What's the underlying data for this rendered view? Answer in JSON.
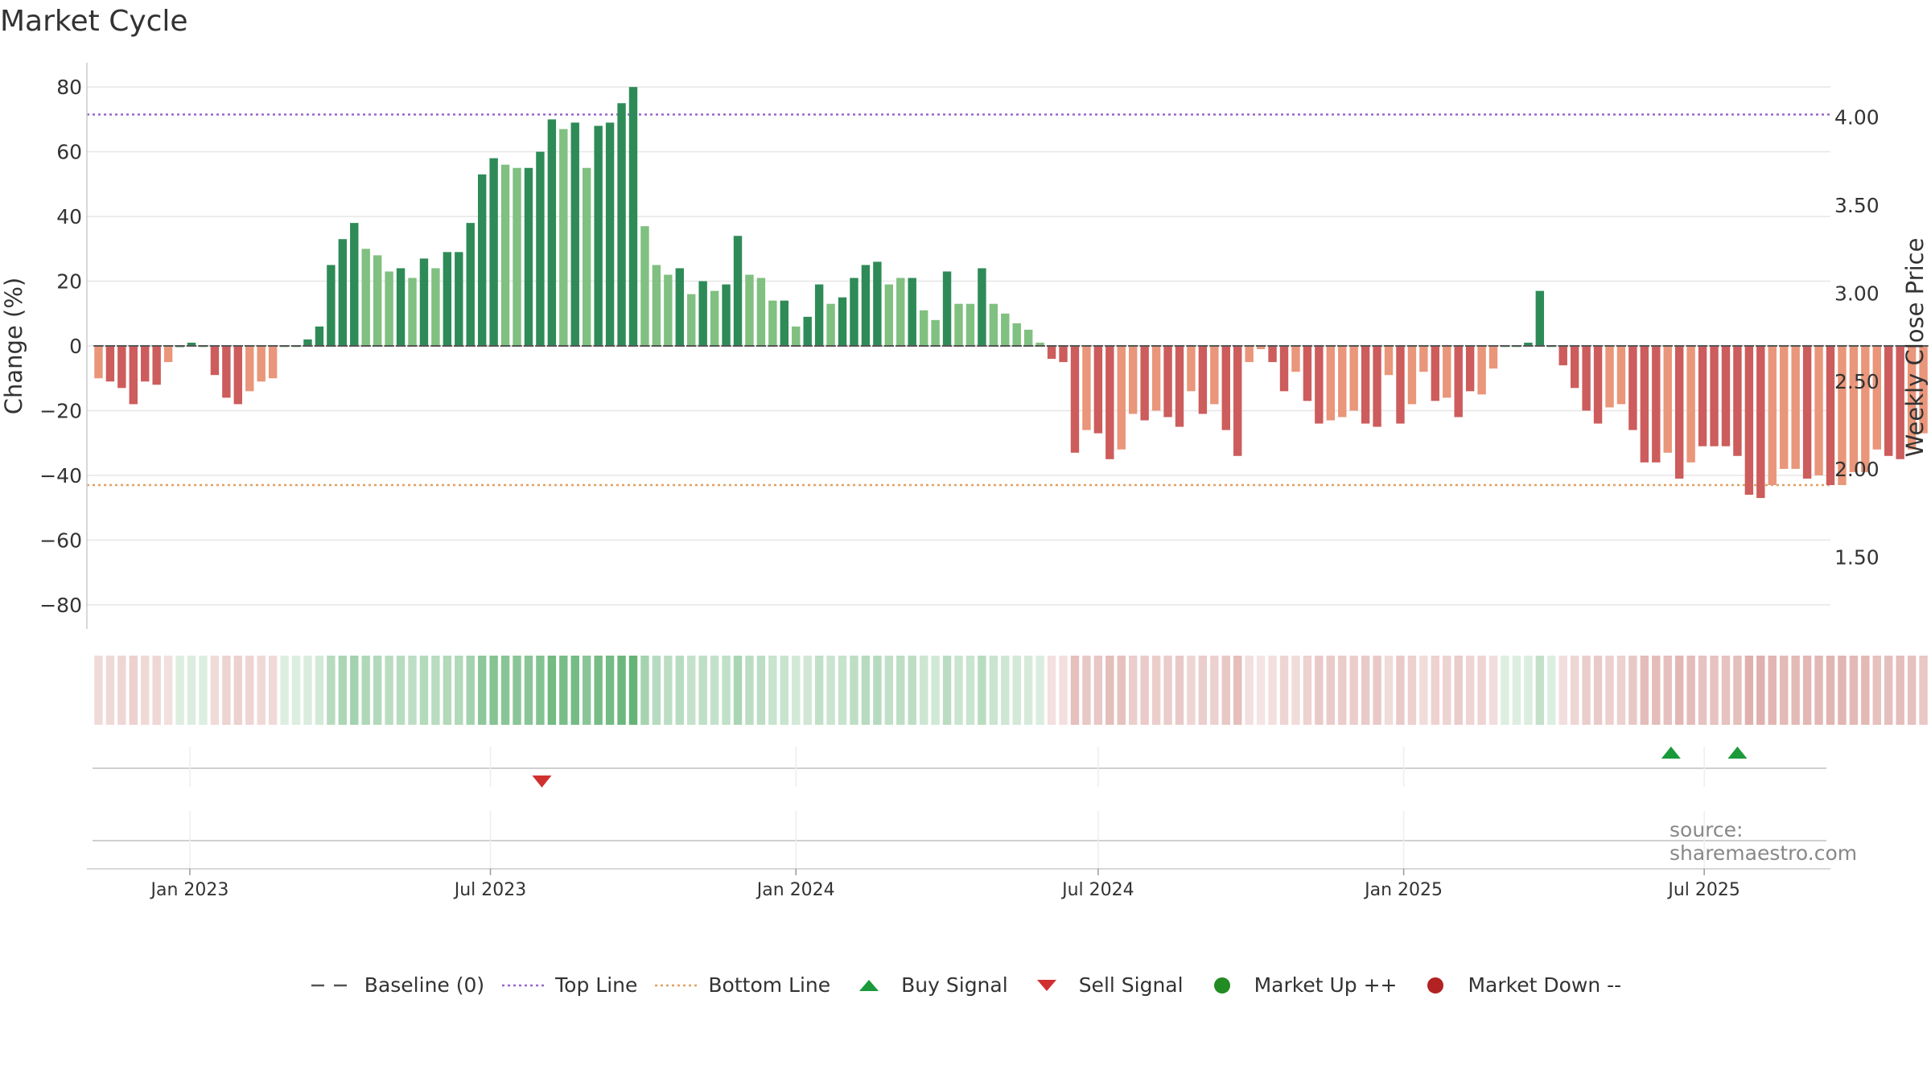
{
  "title": "Market Cycle",
  "source_note": "source: sharemaestro.com",
  "colors": {
    "up_dark": "#2e8b57",
    "up_light": "#80c080",
    "down_dark": "#cd5c5c",
    "down_light": "#e9967a",
    "top_line": "#9966cc",
    "bottom_line": "#e0a060",
    "baseline": "#555555",
    "buy": "#1a9a3a",
    "sell": "#d03030",
    "market_up": "#228b22",
    "market_down": "#b22222"
  },
  "legend": [
    {
      "label": "Baseline (0)",
      "symbol": "dash-line",
      "color": "#555555"
    },
    {
      "label": "Top Line",
      "symbol": "dot-line",
      "color": "#9966cc"
    },
    {
      "label": "Bottom Line",
      "symbol": "dot-line",
      "color": "#e0a060"
    },
    {
      "label": "Buy Signal",
      "symbol": "triangle-up",
      "color": "#1a9a3a"
    },
    {
      "label": "Sell Signal",
      "symbol": "triangle-down",
      "color": "#d03030"
    },
    {
      "label": "Market Up ++",
      "symbol": "circle",
      "color": "#228b22"
    },
    {
      "label": "Market Down --",
      "symbol": "circle",
      "color": "#b22222"
    }
  ],
  "chart_data": {
    "type": "bar",
    "title": "Market Cycle",
    "ylabel": "Change (%)",
    "y2label": "Weekly Close Price",
    "ylim": [
      -87,
      87
    ],
    "y2lim": [
      1.1,
      4.3
    ],
    "yticks": [
      "80",
      "60",
      "40",
      "20",
      "0",
      "−20",
      "−40",
      "−60",
      "−80"
    ],
    "ytick_values": [
      80,
      60,
      40,
      20,
      0,
      -20,
      -40,
      -60,
      -80
    ],
    "y2ticks": [
      "4.00",
      "3.50",
      "3.00",
      "2.50",
      "2.00",
      "1.50"
    ],
    "y2tick_values": [
      4.0,
      3.5,
      3.0,
      2.5,
      2.0,
      1.5
    ],
    "xlim": [
      "2022-10-31",
      "2025-09-15"
    ],
    "xticks": [
      {
        "label": "Jan 2023",
        "date": "2023-01-01"
      },
      {
        "label": "Jul 2023",
        "date": "2023-07-01"
      },
      {
        "label": "Jan 2024",
        "date": "2024-01-01"
      },
      {
        "label": "Jul 2024",
        "date": "2024-07-01"
      },
      {
        "label": "Jan 2025",
        "date": "2025-01-01"
      },
      {
        "label": "Jul 2025",
        "date": "2025-07-01"
      }
    ],
    "top_line": 71.5,
    "bottom_line": -43,
    "baseline": 0,
    "grid": true,
    "first_week": "2022-11-07",
    "week_step_days": 7,
    "values": [
      -10,
      -11,
      -13,
      -18,
      -11,
      -12,
      -5,
      0,
      1,
      0,
      -9,
      -16,
      -18,
      -14,
      -11,
      -10,
      0,
      0,
      2,
      6,
      25,
      33,
      38,
      30,
      28,
      23,
      24,
      21,
      27,
      24,
      29,
      29,
      38,
      53,
      58,
      56,
      55,
      55,
      60,
      70,
      67,
      69,
      55,
      68,
      69,
      75,
      80,
      37,
      25,
      22,
      24,
      16,
      20,
      17,
      19,
      34,
      22,
      21,
      14,
      14,
      6,
      9,
      19,
      13,
      15,
      21,
      25,
      26,
      19,
      21,
      21,
      11,
      8,
      23,
      13,
      13,
      24,
      13,
      10,
      7,
      5,
      1,
      -4,
      -5,
      -33,
      -26,
      -27,
      -35,
      -32,
      -21,
      -23,
      -20,
      -22,
      -25,
      -14,
      -21,
      -18,
      -26,
      -34,
      -5,
      -1,
      -5,
      -14,
      -8,
      -17,
      -24,
      -23,
      -22,
      -20,
      -24,
      -25,
      -9,
      -24,
      -18,
      -8,
      -17,
      -16,
      -22,
      -14,
      -15,
      -7,
      0,
      0,
      1,
      17,
      0,
      -6,
      -13,
      -20,
      -24,
      -19,
      -18,
      -26,
      -36,
      -36,
      -33,
      -41,
      -36,
      -31,
      -31,
      -31,
      -34,
      -46,
      -47,
      -43,
      -38,
      -38,
      -41,
      -40,
      -43,
      -43,
      -39,
      -39,
      -32,
      -34,
      -35,
      -32,
      -27
    ],
    "shade": [
      "light",
      "dark",
      "dark",
      "dark",
      "dark",
      "dark",
      "light",
      "dark",
      "dark",
      "light",
      "dark",
      "dark",
      "dark",
      "light",
      "light",
      "light",
      "light",
      "light",
      "dark",
      "dark",
      "dark",
      "dark",
      "dark",
      "light",
      "light",
      "light",
      "dark",
      "light",
      "dark",
      "light",
      "dark",
      "dark",
      "dark",
      "dark",
      "dark",
      "light",
      "light",
      "dark",
      "dark",
      "dark",
      "light",
      "dark",
      "light",
      "dark",
      "dark",
      "dark",
      "dark",
      "light",
      "light",
      "light",
      "dark",
      "light",
      "dark",
      "light",
      "dark",
      "dark",
      "light",
      "light",
      "light",
      "dark",
      "light",
      "dark",
      "dark",
      "light",
      "dark",
      "dark",
      "dark",
      "dark",
      "light",
      "light",
      "dark",
      "light",
      "light",
      "dark",
      "light",
      "light",
      "dark",
      "light",
      "light",
      "light",
      "light",
      "light",
      "dark",
      "dark",
      "dark",
      "light",
      "dark",
      "dark",
      "light",
      "light",
      "dark",
      "light",
      "dark",
      "dark",
      "light",
      "dark",
      "light",
      "dark",
      "dark",
      "light",
      "light",
      "dark",
      "dark",
      "light",
      "dark",
      "dark",
      "light",
      "light",
      "light",
      "dark",
      "dark",
      "light",
      "dark",
      "light",
      "light",
      "dark",
      "light",
      "dark",
      "dark",
      "light",
      "light",
      "light",
      "light",
      "dark",
      "dark",
      "light",
      "dark",
      "dark",
      "dark",
      "dark",
      "light",
      "light",
      "dark",
      "dark",
      "dark",
      "light",
      "dark",
      "light",
      "dark",
      "dark",
      "dark",
      "dark",
      "dark",
      "dark",
      "light",
      "light",
      "light",
      "dark",
      "light",
      "dark",
      "light",
      "light",
      "light",
      "light",
      "dark",
      "dark",
      "light",
      "light"
    ],
    "signals": [
      {
        "type": "sell",
        "date": "2023-08-01"
      },
      {
        "type": "buy",
        "date": "2025-06-11"
      },
      {
        "type": "buy",
        "date": "2025-07-21"
      }
    ]
  }
}
